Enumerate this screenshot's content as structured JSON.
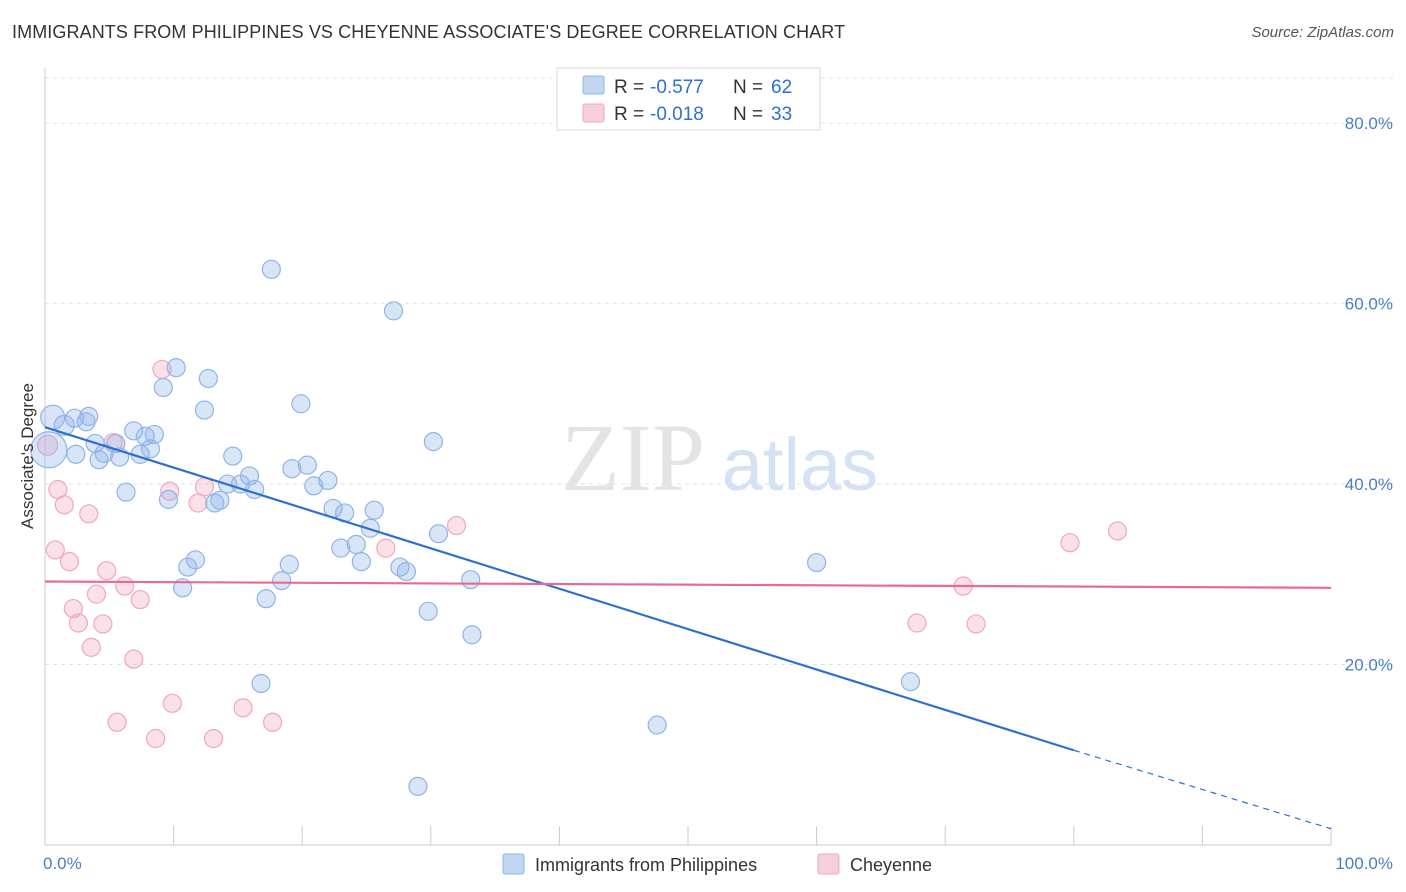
{
  "title": "IMMIGRANTS FROM PHILIPPINES VS CHEYENNE ASSOCIATE'S DEGREE CORRELATION CHART",
  "source": "Source: ZipAtlas.com",
  "watermark": {
    "zip": "ZIP",
    "atlas": "atlas"
  },
  "legend": {
    "r_label": "R =",
    "n_label": "N =",
    "rows": [
      {
        "r": "-0.577",
        "n": "62",
        "color": "#8fb4e8"
      },
      {
        "r": "-0.018",
        "n": "33",
        "color": "#f1a7bd"
      }
    ]
  },
  "bottom_legend": [
    "Immigrants from Philippines",
    "Cheyenne"
  ],
  "chart_data": {
    "type": "scatter",
    "xlabel": "",
    "ylabel": "Associate's Degree",
    "xlim": [
      0,
      100
    ],
    "ylim": [
      0,
      85
    ],
    "x_tick_labels": [
      "0.0%",
      "100.0%"
    ],
    "y_ticks": [
      20,
      40,
      60,
      80
    ],
    "y_tick_labels": [
      "20.0%",
      "40.0%",
      "60.0%",
      "80.0%"
    ],
    "grid": true,
    "series": [
      {
        "name": "Immigrants from Philippines",
        "color": "#8fb4e8",
        "line_color": "#2e6fd1",
        "trend": {
          "x0": 0,
          "y0": 46.3,
          "x1": 80,
          "y1": 10.5,
          "dash_to_x": 100,
          "dash_to_y": 1.8
        },
        "points": [
          [
            0.3,
            43.8,
            18
          ],
          [
            0.6,
            47.4,
            12
          ],
          [
            1.5,
            46.5,
            10
          ],
          [
            2.3,
            47.3,
            9
          ],
          [
            2.4,
            43.3,
            9
          ],
          [
            3.2,
            46.9,
            9
          ],
          [
            3.4,
            47.5,
            9
          ],
          [
            3.9,
            44.5,
            9
          ],
          [
            4.2,
            42.7,
            9
          ],
          [
            4.6,
            43.4,
            9
          ],
          [
            5.5,
            44.5,
            9
          ],
          [
            5.8,
            43.0,
            9
          ],
          [
            6.3,
            39.1,
            9
          ],
          [
            6.9,
            45.9,
            9
          ],
          [
            7.4,
            43.3,
            9
          ],
          [
            7.8,
            45.3,
            9
          ],
          [
            8.2,
            43.9,
            9
          ],
          [
            8.5,
            45.5,
            9
          ],
          [
            9.2,
            50.7,
            9
          ],
          [
            9.6,
            38.3,
            9
          ],
          [
            10.2,
            52.9,
            9
          ],
          [
            10.7,
            28.5,
            9
          ],
          [
            11.1,
            30.8,
            9
          ],
          [
            11.7,
            31.6,
            9
          ],
          [
            12.4,
            48.2,
            9
          ],
          [
            12.7,
            51.7,
            9
          ],
          [
            13.2,
            37.9,
            9
          ],
          [
            13.6,
            38.2,
            9
          ],
          [
            14.2,
            40.0,
            9
          ],
          [
            14.6,
            43.1,
            9
          ],
          [
            15.2,
            40.0,
            9
          ],
          [
            15.9,
            40.9,
            9
          ],
          [
            16.3,
            39.4,
            9
          ],
          [
            16.8,
            17.9,
            9
          ],
          [
            17.2,
            27.3,
            9
          ],
          [
            17.6,
            63.8,
            9
          ],
          [
            18.4,
            29.3,
            9
          ],
          [
            19.0,
            31.1,
            9
          ],
          [
            19.2,
            41.7,
            9
          ],
          [
            19.9,
            48.9,
            9
          ],
          [
            20.4,
            42.1,
            9
          ],
          [
            20.9,
            39.8,
            9
          ],
          [
            22.0,
            40.4,
            9
          ],
          [
            22.4,
            37.3,
            9
          ],
          [
            23.0,
            32.9,
            9
          ],
          [
            23.3,
            36.8,
            9
          ],
          [
            24.2,
            33.3,
            9
          ],
          [
            24.6,
            31.4,
            9
          ],
          [
            25.3,
            35.1,
            9
          ],
          [
            25.6,
            37.1,
            9
          ],
          [
            27.1,
            59.2,
            9
          ],
          [
            27.6,
            30.8,
            9
          ],
          [
            28.1,
            30.3,
            9
          ],
          [
            29.0,
            6.5,
            9
          ],
          [
            29.8,
            25.9,
            9
          ],
          [
            30.2,
            44.7,
            9
          ],
          [
            30.6,
            34.5,
            9
          ],
          [
            33.1,
            29.4,
            9
          ],
          [
            33.2,
            23.3,
            9
          ],
          [
            47.6,
            13.3,
            9
          ],
          [
            60.0,
            31.3,
            9
          ],
          [
            67.3,
            18.1,
            9
          ]
        ]
      },
      {
        "name": "Cheyenne",
        "color": "#f1a7bd",
        "line_color": "#e86a93",
        "trend": {
          "x0": 0,
          "y0": 29.2,
          "x1": 100,
          "y1": 28.5
        },
        "points": [
          [
            0.2,
            44.3,
            10
          ],
          [
            0.8,
            32.7,
            9
          ],
          [
            1.0,
            39.4,
            9
          ],
          [
            1.5,
            37.7,
            9
          ],
          [
            1.9,
            31.4,
            9
          ],
          [
            2.2,
            26.2,
            9
          ],
          [
            2.6,
            24.6,
            9
          ],
          [
            3.4,
            36.7,
            9
          ],
          [
            3.6,
            21.9,
            9
          ],
          [
            4.0,
            27.8,
            9
          ],
          [
            4.5,
            24.5,
            9
          ],
          [
            4.8,
            30.4,
            9
          ],
          [
            5.3,
            44.6,
            9
          ],
          [
            5.6,
            13.6,
            9
          ],
          [
            6.2,
            28.7,
            9
          ],
          [
            6.9,
            20.6,
            9
          ],
          [
            7.4,
            27.2,
            9
          ],
          [
            8.6,
            11.8,
            9
          ],
          [
            9.1,
            52.7,
            9
          ],
          [
            9.7,
            39.2,
            9
          ],
          [
            9.9,
            15.7,
            9
          ],
          [
            11.9,
            37.9,
            9
          ],
          [
            12.4,
            39.7,
            9
          ],
          [
            13.1,
            11.8,
            9
          ],
          [
            15.4,
            15.2,
            9
          ],
          [
            17.7,
            13.6,
            9
          ],
          [
            26.5,
            32.9,
            9
          ],
          [
            32.0,
            35.4,
            9
          ],
          [
            67.8,
            24.6,
            9
          ],
          [
            71.4,
            28.7,
            9
          ],
          [
            72.4,
            24.5,
            9
          ],
          [
            79.7,
            33.5,
            9
          ],
          [
            83.4,
            34.8,
            9
          ]
        ]
      }
    ]
  }
}
